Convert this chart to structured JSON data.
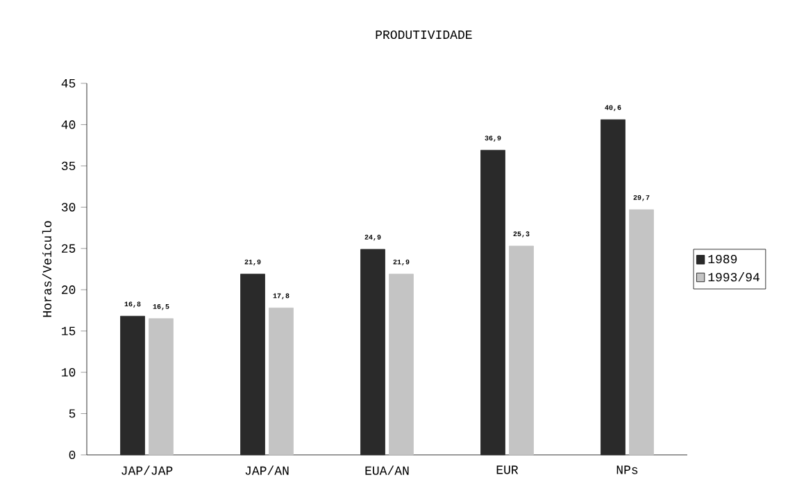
{
  "chart_data": {
    "type": "bar",
    "title": "PRODUTIVIDADE",
    "ylabel": "Horas/Veículo",
    "categories": [
      "JAP/JAP",
      "JAP/AN",
      "EUA/AN",
      "EUR",
      "NPs"
    ],
    "series": [
      {
        "name": "1989",
        "color": "#2a2a2a",
        "values": [
          16.8,
          21.9,
          24.9,
          36.9,
          40.6
        ],
        "value_labels": [
          "16,8",
          "21,9",
          "24,9",
          "36,9",
          "40,6"
        ]
      },
      {
        "name": "1993/94",
        "color": "#c4c4c4",
        "values": [
          16.5,
          17.8,
          21.9,
          25.3,
          29.7
        ],
        "value_labels": [
          "16,5",
          "17,8",
          "21,9",
          "25,3",
          "29,7"
        ]
      }
    ],
    "ylim": [
      0,
      45
    ],
    "yticks": [
      0,
      5,
      10,
      15,
      20,
      25,
      30,
      35,
      40,
      45
    ],
    "grid": false,
    "legend": "right"
  }
}
